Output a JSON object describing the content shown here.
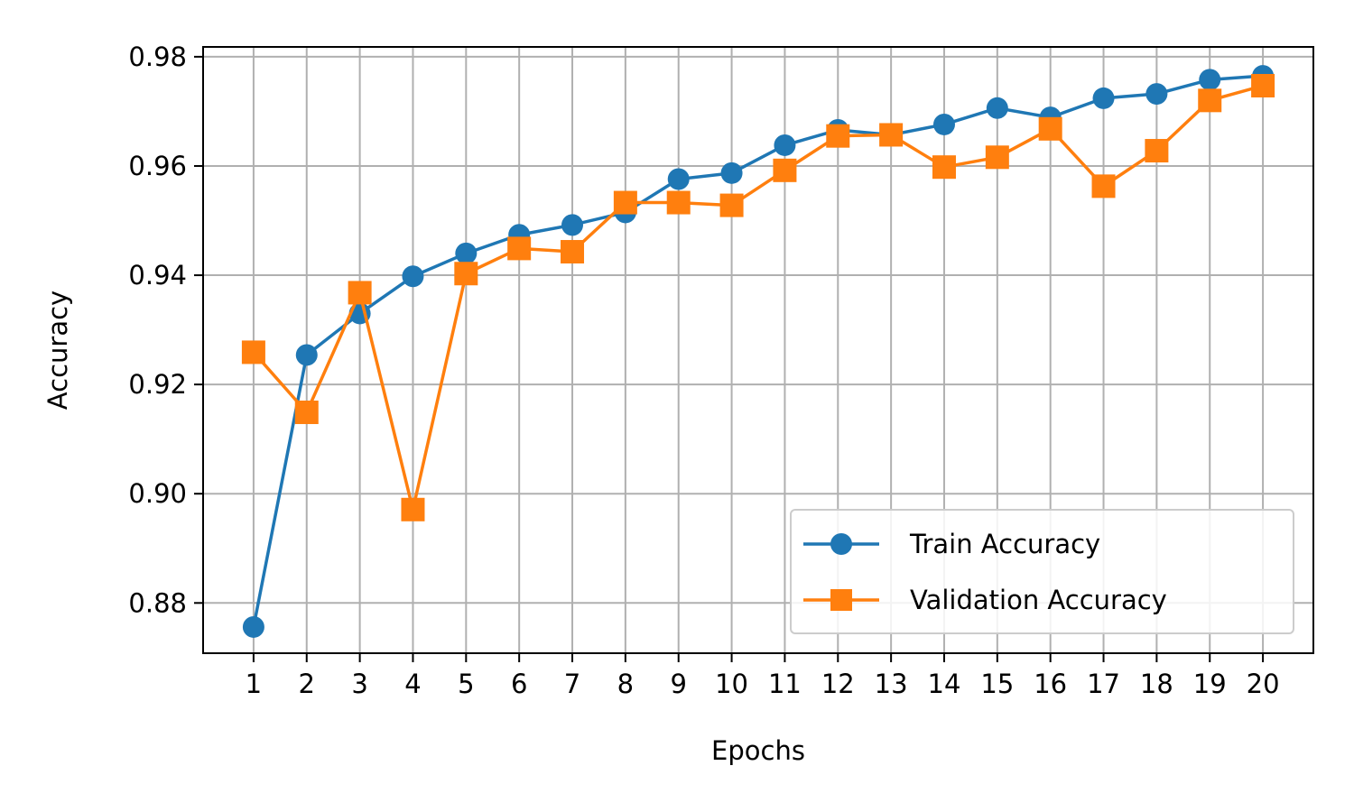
{
  "chart_data": {
    "type": "line",
    "title": "",
    "xlabel": "Epochs",
    "ylabel": "Accuracy",
    "x": [
      1,
      2,
      3,
      4,
      5,
      6,
      7,
      8,
      9,
      10,
      11,
      12,
      13,
      14,
      15,
      16,
      17,
      18,
      19,
      20
    ],
    "ylim": [
      0.8708,
      0.9818
    ],
    "yticks": [
      0.88,
      0.9,
      0.92,
      0.94,
      0.96,
      0.98
    ],
    "ytick_labels": [
      "0.88",
      "0.90",
      "0.92",
      "0.94",
      "0.96",
      "0.98"
    ],
    "grid": true,
    "legend_position": "lower-right",
    "series": [
      {
        "name": "Train Accuracy",
        "color": "#1f77b4",
        "marker": "circle",
        "values": [
          0.8756,
          0.9254,
          0.933,
          0.9398,
          0.944,
          0.9474,
          0.9492,
          0.9515,
          0.9576,
          0.9587,
          0.9638,
          0.9666,
          0.9657,
          0.9676,
          0.9706,
          0.9689,
          0.9724,
          0.9732,
          0.9758,
          0.9765
        ]
      },
      {
        "name": "Validation Accuracy",
        "color": "#ff7f0e",
        "marker": "square",
        "values": [
          0.9259,
          0.9149,
          0.9368,
          0.8971,
          0.9403,
          0.9449,
          0.9443,
          0.9533,
          0.9533,
          0.9528,
          0.9592,
          0.9655,
          0.9657,
          0.9598,
          0.9616,
          0.9668,
          0.9563,
          0.9628,
          0.972,
          0.9747
        ]
      }
    ]
  }
}
